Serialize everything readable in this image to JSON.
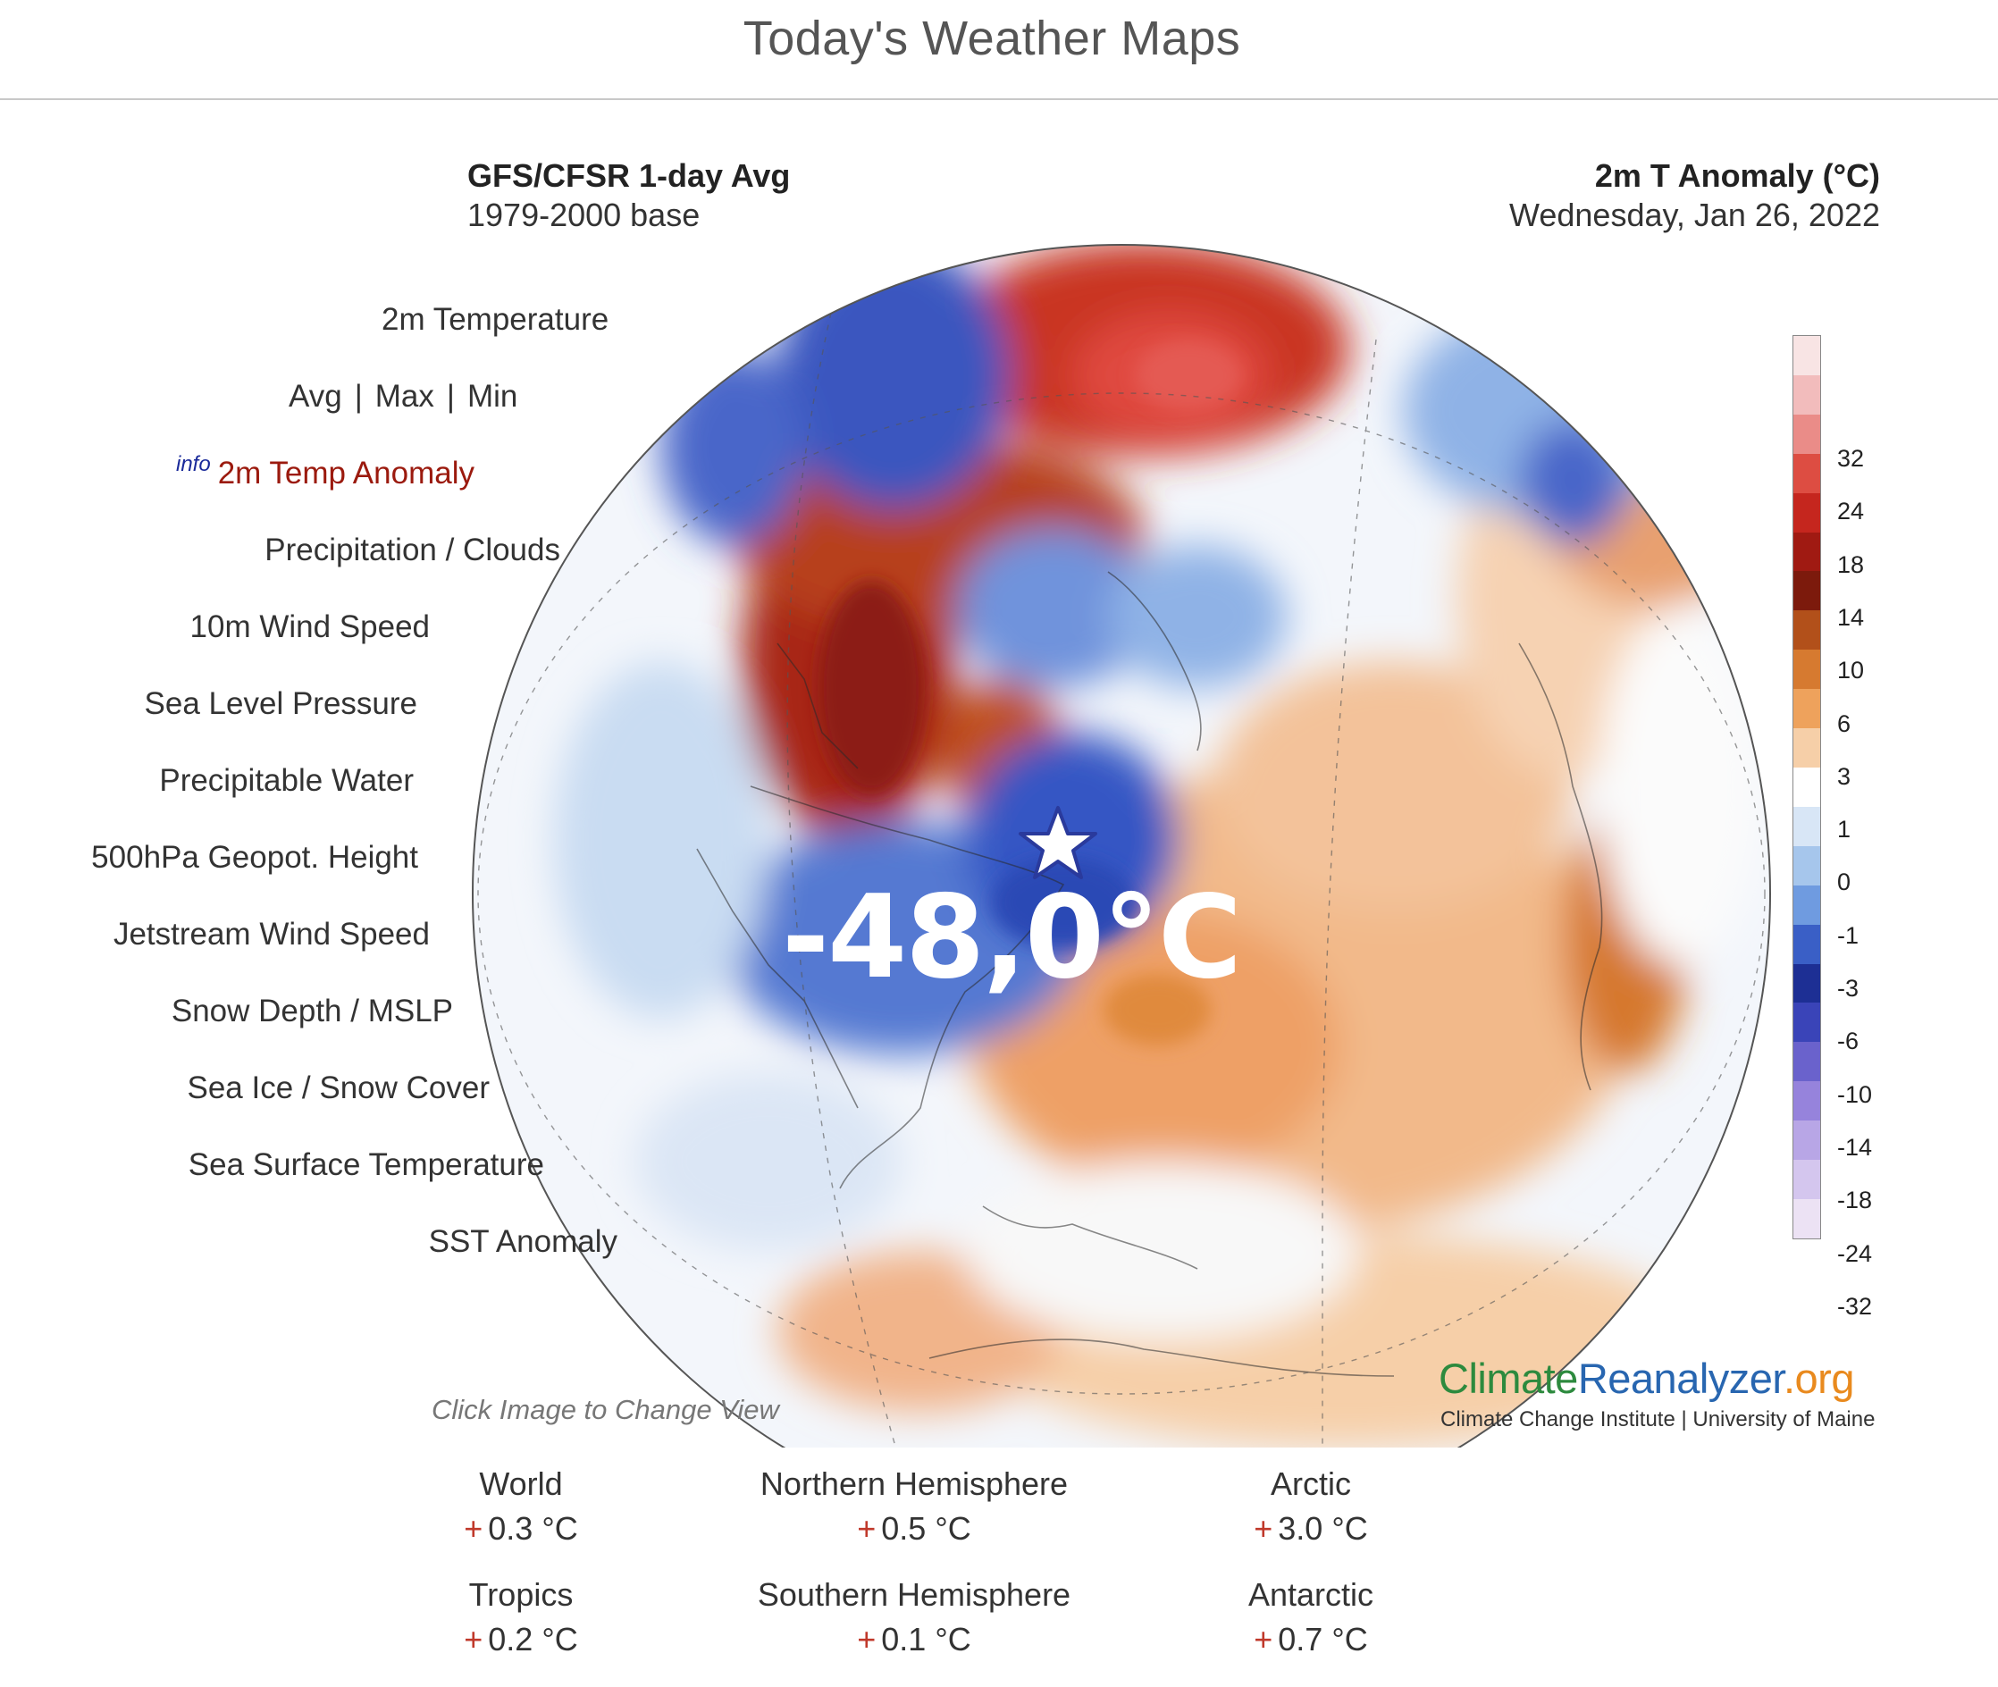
{
  "page": {
    "title": "Today's Weather Maps"
  },
  "map": {
    "model": "GFS/CFSR 1-day Avg",
    "base": "1979-2000 base",
    "variable": "2m T Anomaly (°C)",
    "date": "Wednesday, Jan 26, 2022",
    "overlay_value": "-48,0°C",
    "click_hint": "Click Image to Change View",
    "colorbar": {
      "labels": [
        "32",
        "24",
        "18",
        "14",
        "10",
        "6",
        "3",
        "1",
        "0",
        "-1",
        "-3",
        "-6",
        "-10",
        "-14",
        "-18",
        "-24",
        "-32"
      ],
      "colors": [
        "#f8e4e4",
        "#f2bcbc",
        "#ea8c88",
        "#dd4d42",
        "#c5261e",
        "#a01a12",
        "#7c1a0c",
        "#b2501a",
        "#d67a30",
        "#eea25c",
        "#f6cfa8",
        "#ffffff",
        "#d8e6f6",
        "#a6c6ec",
        "#6f9be0",
        "#3a5fc6",
        "#1d2f94",
        "#3a44b8",
        "#6a62cc",
        "#9683dc",
        "#b8a6e6",
        "#d4c6ee",
        "#ece2f4"
      ]
    },
    "brand": {
      "part1": "Climate",
      "part2": "Reanalyzer",
      "part3": ".org",
      "subtitle": "Climate Change Institute | University of Maine"
    }
  },
  "menu": {
    "temperature": "2m Temperature",
    "avg": "Avg",
    "max": "Max",
    "min": "Min",
    "sep": "|",
    "info": "info",
    "anomaly": "2m Temp Anomaly",
    "items": [
      "Precipitation / Clouds",
      "10m Wind Speed",
      "Sea Level Pressure",
      "Precipitable Water",
      "500hPa Geopot. Height",
      "Jetstream Wind Speed",
      "Snow Depth / MSLP",
      "Sea Ice / Snow Cover",
      "Sea Surface Temperature",
      "SST Anomaly"
    ]
  },
  "stats": [
    {
      "name": "World",
      "sign": "+",
      "value": "0.3 °C"
    },
    {
      "name": "Northern Hemisphere",
      "sign": "+",
      "value": "0.5 °C"
    },
    {
      "name": "Arctic",
      "sign": "+",
      "value": "3.0 °C"
    },
    {
      "name": "Tropics",
      "sign": "+",
      "value": "0.2 °C"
    },
    {
      "name": "Southern Hemisphere",
      "sign": "+",
      "value": "0.1 °C"
    },
    {
      "name": "Antarctic",
      "sign": "+",
      "value": "0.7 °C"
    }
  ]
}
